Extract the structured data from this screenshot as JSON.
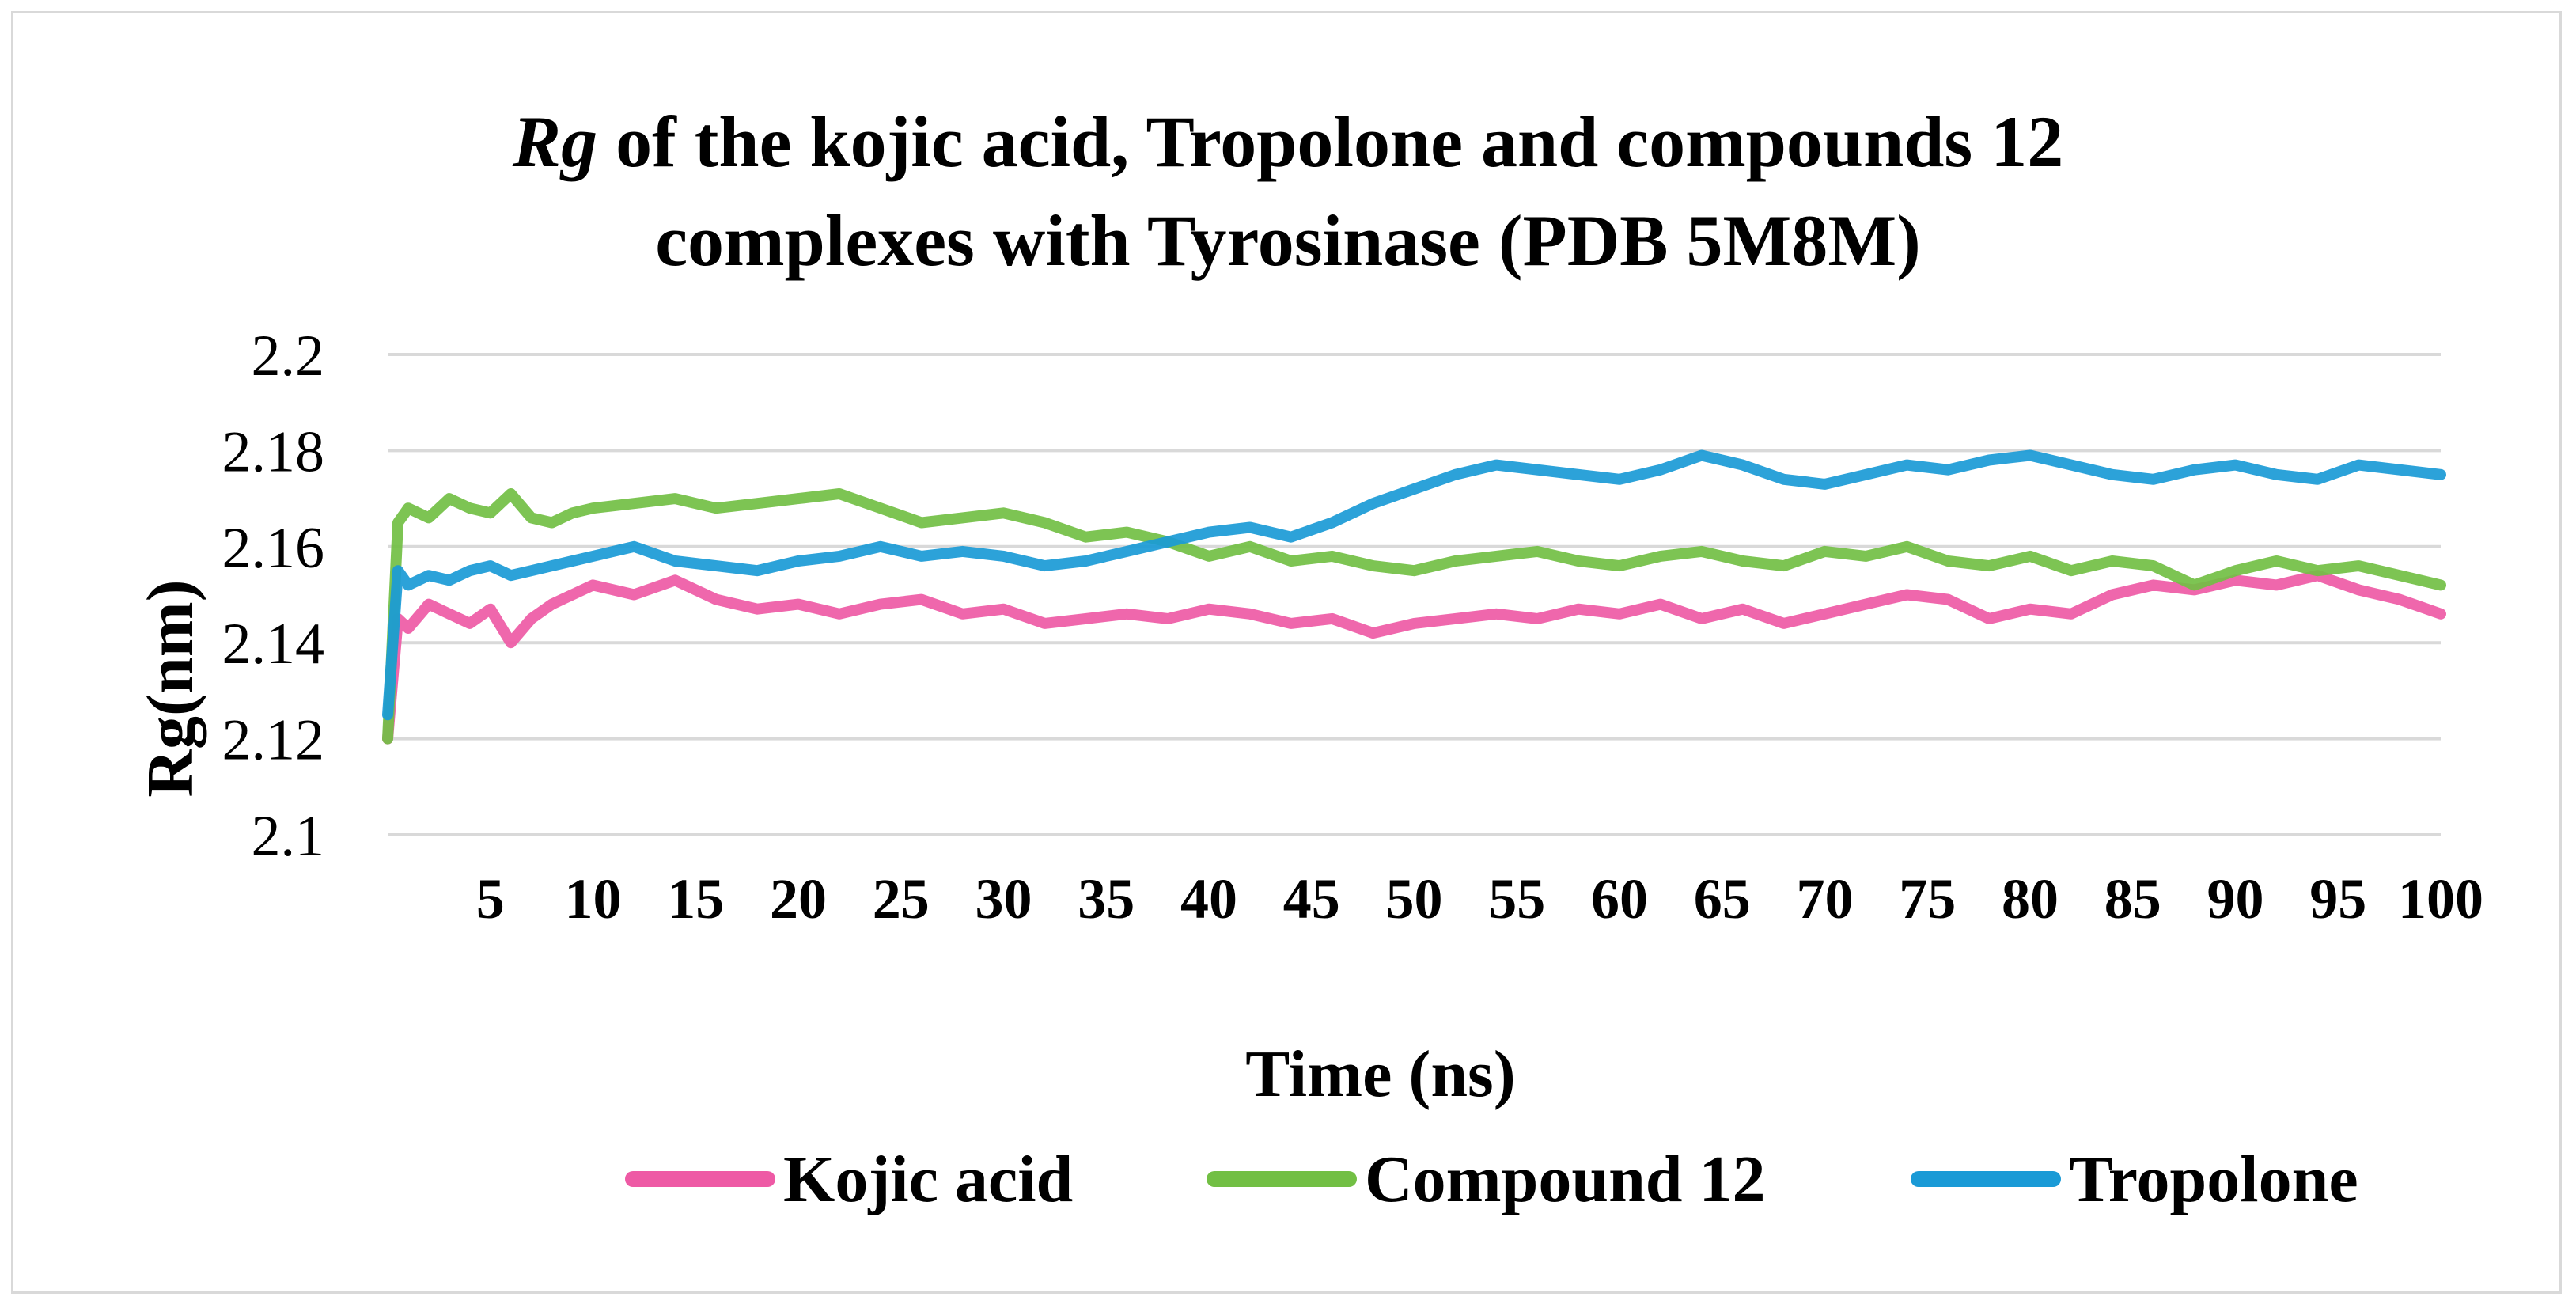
{
  "chart_data": {
    "type": "line",
    "title_italic": "Rg",
    "title_line1_rest": " of the kojic acid, Tropolone and compounds 12",
    "title_line2": "complexes with Tyrosinase (PDB 5M8M)",
    "xlabel": "Time (ns)",
    "ylabel": "Rg(nm)",
    "xlim": [
      0,
      100
    ],
    "ylim": [
      2.1,
      2.2
    ],
    "y_ticks": [
      "2.1",
      "2.12",
      "2.14",
      "2.16",
      "2.18",
      "2.2"
    ],
    "x_ticks": [
      "5",
      "10",
      "15",
      "20",
      "25",
      "30",
      "35",
      "40",
      "45",
      "50",
      "55",
      "60",
      "65",
      "70",
      "75",
      "80",
      "85",
      "90",
      "95",
      "100"
    ],
    "grid": true,
    "legend_position": "bottom",
    "x": [
      0,
      0.5,
      1,
      2,
      3,
      4,
      5,
      6,
      7,
      8,
      9,
      10,
      12,
      14,
      16,
      18,
      20,
      22,
      24,
      26,
      28,
      30,
      32,
      34,
      36,
      38,
      40,
      42,
      44,
      46,
      48,
      50,
      52,
      54,
      56,
      58,
      60,
      62,
      64,
      66,
      68,
      70,
      72,
      74,
      76,
      78,
      80,
      82,
      84,
      86,
      88,
      90,
      92,
      94,
      96,
      98,
      100
    ],
    "series": [
      {
        "name": "Kojic acid",
        "color": "#ee5aa5",
        "values": [
          2.12,
          2.145,
          2.143,
          2.148,
          2.146,
          2.144,
          2.147,
          2.14,
          2.145,
          2.148,
          2.15,
          2.152,
          2.15,
          2.153,
          2.149,
          2.147,
          2.148,
          2.146,
          2.148,
          2.149,
          2.146,
          2.147,
          2.144,
          2.145,
          2.146,
          2.145,
          2.147,
          2.146,
          2.144,
          2.145,
          2.142,
          2.144,
          2.145,
          2.146,
          2.145,
          2.147,
          2.146,
          2.148,
          2.145,
          2.147,
          2.144,
          2.146,
          2.148,
          2.15,
          2.149,
          2.145,
          2.147,
          2.146,
          2.15,
          2.152,
          2.151,
          2.153,
          2.152,
          2.154,
          2.151,
          2.149,
          2.146
        ]
      },
      {
        "name": "Compound 12",
        "color": "#72bf44",
        "values": [
          2.12,
          2.165,
          2.168,
          2.166,
          2.17,
          2.168,
          2.167,
          2.171,
          2.166,
          2.165,
          2.167,
          2.168,
          2.169,
          2.17,
          2.168,
          2.169,
          2.17,
          2.171,
          2.168,
          2.165,
          2.166,
          2.167,
          2.165,
          2.162,
          2.163,
          2.161,
          2.158,
          2.16,
          2.157,
          2.158,
          2.156,
          2.155,
          2.157,
          2.158,
          2.159,
          2.157,
          2.156,
          2.158,
          2.159,
          2.157,
          2.156,
          2.159,
          2.158,
          2.16,
          2.157,
          2.156,
          2.158,
          2.155,
          2.157,
          2.156,
          2.152,
          2.155,
          2.157,
          2.155,
          2.156,
          2.154,
          2.152
        ]
      },
      {
        "name": "Tropolone",
        "color": "#1a9ad6",
        "values": [
          2.125,
          2.155,
          2.152,
          2.154,
          2.153,
          2.155,
          2.156,
          2.154,
          2.155,
          2.156,
          2.157,
          2.158,
          2.16,
          2.157,
          2.156,
          2.155,
          2.157,
          2.158,
          2.16,
          2.158,
          2.159,
          2.158,
          2.156,
          2.157,
          2.159,
          2.161,
          2.163,
          2.164,
          2.162,
          2.165,
          2.169,
          2.172,
          2.175,
          2.177,
          2.176,
          2.175,
          2.174,
          2.176,
          2.179,
          2.177,
          2.174,
          2.173,
          2.175,
          2.177,
          2.176,
          2.178,
          2.179,
          2.177,
          2.175,
          2.174,
          2.176,
          2.177,
          2.175,
          2.174,
          2.177,
          2.176,
          2.175
        ]
      }
    ]
  }
}
